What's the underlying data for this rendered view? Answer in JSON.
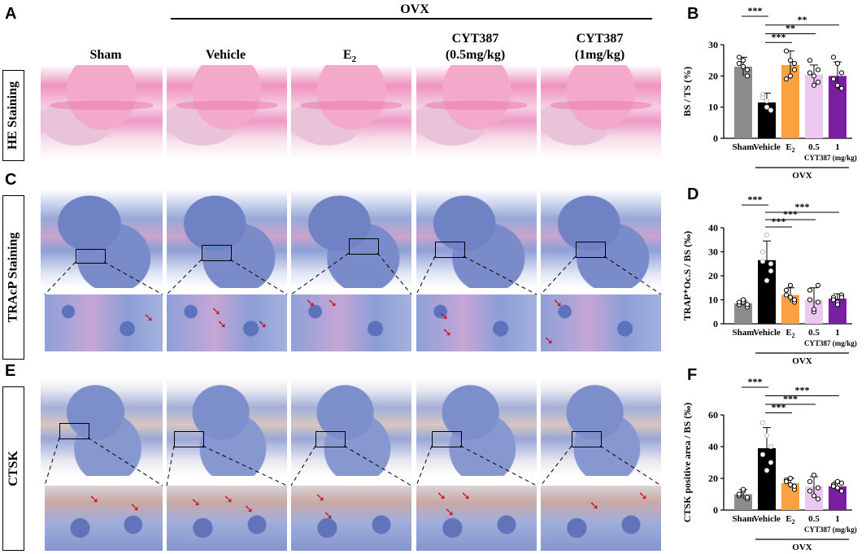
{
  "figure": {
    "panel_letters": [
      "A",
      "B",
      "C",
      "D",
      "E",
      "F"
    ],
    "ovx_header": "OVX",
    "columns": [
      {
        "line1": "Sham",
        "line2": ""
      },
      {
        "line1": "Vehicle",
        "line2": ""
      },
      {
        "line1": "E",
        "sub": "2",
        "line2": ""
      },
      {
        "line1": "CYT387",
        "line2": "(0.5mg/kg)"
      },
      {
        "line1": "CYT387",
        "line2": "(1mg/kg)"
      }
    ],
    "row_labels": [
      "HE Staining",
      "TRAcP Staining",
      "CTSK"
    ],
    "colors": {
      "sham": "#8c8c8c",
      "vehicle": "#000000",
      "e2": "#f9a23f",
      "cyt_low": "#ecc8f0",
      "cyt_high": "#7b1fa2",
      "arrow": "#d0101a"
    },
    "arrow_icon": "red-arrow-icon"
  },
  "chart_data": [
    {
      "type": "bar",
      "panel": "B",
      "categories": [
        "Sham",
        "Vehicle",
        "E2",
        "0.5",
        "1"
      ],
      "values": [
        23,
        11.5,
        23.5,
        20.5,
        20
      ],
      "errors": [
        3,
        3,
        4.5,
        3,
        4.5
      ],
      "points": [
        [
          26,
          23,
          20,
          24,
          25,
          22
        ],
        [
          14,
          10,
          9,
          13,
          12
        ],
        [
          28,
          25,
          22,
          19,
          20,
          24
        ],
        [
          25,
          20,
          18,
          21,
          17,
          22
        ],
        [
          26,
          24,
          16,
          19,
          17,
          21
        ]
      ],
      "ylabel": "BS / TS (%)",
      "ylim": [
        0,
        30
      ],
      "yticks": [
        0,
        10,
        20,
        30
      ],
      "group_label": "CYT387 (mg/kg)",
      "ovx_label": "OVX",
      "significance": [
        {
          "from": 0,
          "to": 1,
          "label": "***"
        },
        {
          "from": 1,
          "to": 2,
          "label": "***"
        },
        {
          "from": 1,
          "to": 3,
          "label": "**"
        },
        {
          "from": 1,
          "to": 4,
          "label": "**"
        }
      ]
    },
    {
      "type": "bar",
      "panel": "D",
      "categories": [
        "Sham",
        "Vehicle",
        "E2",
        "0.5",
        "1"
      ],
      "values": [
        8.5,
        26.5,
        12,
        10,
        10.5
      ],
      "errors": [
        1,
        8,
        3,
        5,
        2
      ],
      "points": [
        [
          8,
          9,
          7,
          9,
          10,
          8
        ],
        [
          30,
          37,
          22,
          26,
          18,
          25
        ],
        [
          14,
          11,
          9,
          12,
          16,
          10
        ],
        [
          14,
          5,
          9,
          10,
          6,
          16
        ],
        [
          11,
          9,
          12,
          10,
          8,
          11
        ]
      ],
      "ylabel": "TRAP⁺Oc.S / BS (‰)",
      "ylim": [
        0,
        40
      ],
      "yticks": [
        0,
        10,
        20,
        30,
        40
      ],
      "group_label": "CYT387 (mg/kg)",
      "ovx_label": "OVX",
      "significance": [
        {
          "from": 0,
          "to": 1,
          "label": "***"
        },
        {
          "from": 1,
          "to": 2,
          "label": "***"
        },
        {
          "from": 1,
          "to": 3,
          "label": "***"
        },
        {
          "from": 1,
          "to": 4,
          "label": "***"
        }
      ]
    },
    {
      "type": "bar",
      "panel": "F",
      "categories": [
        "Sham",
        "Vehicle",
        "E2",
        "0.5",
        "1"
      ],
      "values": [
        10,
        39,
        17,
        15,
        15
      ],
      "errors": [
        3,
        13,
        3,
        6,
        3
      ],
      "points": [
        [
          9,
          12,
          7,
          10,
          13,
          8
        ],
        [
          55,
          47,
          30,
          35,
          25,
          40
        ],
        [
          19,
          16,
          13,
          18,
          20,
          15
        ],
        [
          12,
          22,
          7,
          18,
          9,
          14
        ],
        [
          16,
          18,
          12,
          15,
          14,
          17
        ]
      ],
      "ylabel": "CTSK positive  area / BS (‰)",
      "ylim": [
        0,
        60
      ],
      "yticks": [
        0,
        20,
        40,
        60
      ],
      "group_label": "CYT387 (mg/kg)",
      "ovx_label": "OVX",
      "significance": [
        {
          "from": 0,
          "to": 1,
          "label": "***"
        },
        {
          "from": 1,
          "to": 2,
          "label": "***"
        },
        {
          "from": 1,
          "to": 3,
          "label": "***"
        },
        {
          "from": 1,
          "to": 4,
          "label": "***"
        }
      ]
    }
  ]
}
